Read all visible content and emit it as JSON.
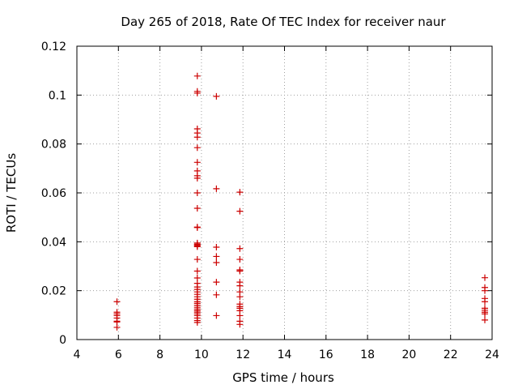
{
  "chart_data": {
    "type": "scatter",
    "title": "Day 265 of 2018, Rate Of TEC Index for receiver naur",
    "xlabel": "GPS time / hours",
    "ylabel": "ROTI / TECUs",
    "xlim": [
      4,
      24
    ],
    "ylim": [
      0,
      0.12
    ],
    "grid": true,
    "marker": "plus",
    "marker_color": "#cc0000",
    "x_ticks": [
      {
        "value": 4,
        "label": "4"
      },
      {
        "value": 6,
        "label": "6"
      },
      {
        "value": 8,
        "label": "8"
      },
      {
        "value": 10,
        "label": "10"
      },
      {
        "value": 12,
        "label": "12"
      },
      {
        "value": 14,
        "label": "14"
      },
      {
        "value": 16,
        "label": "16"
      },
      {
        "value": 18,
        "label": "18"
      },
      {
        "value": 20,
        "label": "20"
      },
      {
        "value": 22,
        "label": "22"
      },
      {
        "value": 24,
        "label": "24"
      }
    ],
    "y_ticks": [
      {
        "value": 0,
        "label": "0"
      },
      {
        "value": 0.02,
        "label": "0.02"
      },
      {
        "value": 0.04,
        "label": "0.04"
      },
      {
        "value": 0.06,
        "label": "0.06"
      },
      {
        "value": 0.08,
        "label": "0.08"
      },
      {
        "value": 0.1,
        "label": "0.1"
      },
      {
        "value": 0.12,
        "label": "0.12"
      }
    ],
    "points": [
      [
        5.93,
        0.0155
      ],
      [
        5.93,
        0.0112
      ],
      [
        5.93,
        0.0105
      ],
      [
        5.93,
        0.0098
      ],
      [
        5.93,
        0.0088
      ],
      [
        5.93,
        0.0075
      ],
      [
        5.93,
        0.0072
      ],
      [
        5.93,
        0.005
      ],
      [
        9.8,
        0.1078
      ],
      [
        9.8,
        0.1015
      ],
      [
        9.8,
        0.1008
      ],
      [
        9.8,
        0.0862
      ],
      [
        9.8,
        0.0845
      ],
      [
        9.8,
        0.0828
      ],
      [
        9.8,
        0.0785
      ],
      [
        9.8,
        0.0725
      ],
      [
        9.8,
        0.069
      ],
      [
        9.8,
        0.067
      ],
      [
        9.8,
        0.066
      ],
      [
        9.8,
        0.06
      ],
      [
        9.8,
        0.0537
      ],
      [
        9.8,
        0.046
      ],
      [
        9.8,
        0.0458
      ],
      [
        9.8,
        0.0395
      ],
      [
        9.8,
        0.039
      ],
      [
        9.8,
        0.0387
      ],
      [
        9.8,
        0.0383
      ],
      [
        9.8,
        0.038
      ],
      [
        9.8,
        0.0328
      ],
      [
        9.8,
        0.028
      ],
      [
        9.8,
        0.0252
      ],
      [
        9.8,
        0.023
      ],
      [
        9.8,
        0.0215
      ],
      [
        9.8,
        0.0205
      ],
      [
        9.8,
        0.0195
      ],
      [
        9.8,
        0.0185
      ],
      [
        9.8,
        0.0175
      ],
      [
        9.8,
        0.0165
      ],
      [
        9.8,
        0.0155
      ],
      [
        9.8,
        0.0148
      ],
      [
        9.8,
        0.014
      ],
      [
        9.8,
        0.0132
      ],
      [
        9.8,
        0.0125
      ],
      [
        9.8,
        0.0118
      ],
      [
        9.8,
        0.0112
      ],
      [
        9.8,
        0.0105
      ],
      [
        9.8,
        0.0098
      ],
      [
        9.8,
        0.0088
      ],
      [
        9.8,
        0.0078
      ],
      [
        9.8,
        0.007
      ],
      [
        10.72,
        0.0995
      ],
      [
        10.72,
        0.0617
      ],
      [
        10.72,
        0.0378
      ],
      [
        10.72,
        0.034
      ],
      [
        10.72,
        0.0315
      ],
      [
        10.72,
        0.0235
      ],
      [
        10.72,
        0.0183
      ],
      [
        10.72,
        0.0098
      ],
      [
        11.85,
        0.0603
      ],
      [
        11.85,
        0.0525
      ],
      [
        11.85,
        0.0372
      ],
      [
        11.85,
        0.0328
      ],
      [
        11.85,
        0.0285
      ],
      [
        11.85,
        0.028
      ],
      [
        11.85,
        0.0235
      ],
      [
        11.85,
        0.022
      ],
      [
        11.85,
        0.0195
      ],
      [
        11.85,
        0.0175
      ],
      [
        11.85,
        0.0145
      ],
      [
        11.85,
        0.0135
      ],
      [
        11.85,
        0.0128
      ],
      [
        11.85,
        0.0118
      ],
      [
        11.85,
        0.0098
      ],
      [
        11.85,
        0.0075
      ],
      [
        11.85,
        0.0062
      ],
      [
        23.65,
        0.0253
      ],
      [
        23.65,
        0.0213
      ],
      [
        23.65,
        0.02
      ],
      [
        23.65,
        0.0168
      ],
      [
        23.65,
        0.0155
      ],
      [
        23.65,
        0.0128
      ],
      [
        23.65,
        0.012
      ],
      [
        23.65,
        0.0112
      ],
      [
        23.65,
        0.0105
      ],
      [
        23.65,
        0.008
      ]
    ]
  }
}
